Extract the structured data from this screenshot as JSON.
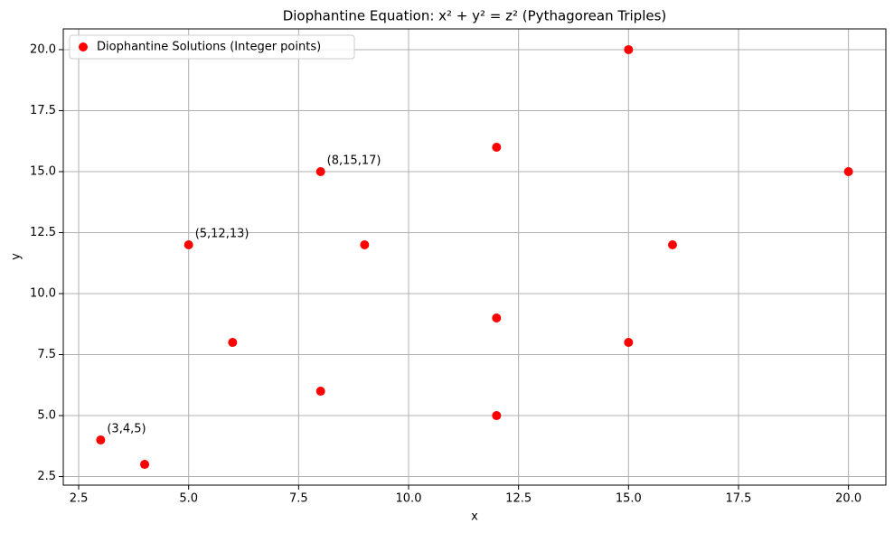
{
  "chart_data": {
    "type": "scatter",
    "title": "Diophantine Equation: x² + y² = z² (Pythagorean Triples)",
    "xlabel": "x",
    "ylabel": "y",
    "x": [
      3,
      4,
      5,
      12,
      6,
      8,
      8,
      15,
      9,
      12,
      12,
      16,
      15,
      20
    ],
    "series": [
      {
        "name": "Diophantine Solutions (Integer points)",
        "color": "#ff0000",
        "values": [
          4,
          3,
          12,
          5,
          8,
          6,
          15,
          8,
          12,
          9,
          16,
          12,
          20,
          15
        ]
      }
    ],
    "xlim": [
      2.15,
      20.85
    ],
    "ylim": [
      2.15,
      20.85
    ],
    "xticks": [
      2.5,
      {
        "value": 5,
        "label": "5.0"
      },
      7.5,
      {
        "value": 10,
        "label": "10.0"
      },
      12.5,
      {
        "value": 15,
        "label": "15.0"
      },
      17.5,
      {
        "value": 20,
        "label": "20.0"
      }
    ],
    "yticks": [
      2.5,
      {
        "value": 5,
        "label": "5.0"
      },
      7.5,
      {
        "value": 10,
        "label": "10.0"
      },
      12.5,
      {
        "value": 15,
        "label": "15.0"
      },
      17.5,
      {
        "value": 20,
        "label": "20.0"
      }
    ],
    "annotations": [
      {
        "text": "(3,4,5)",
        "x": 3,
        "y": 4
      },
      {
        "text": "(5,12,13)",
        "x": 5,
        "y": 12
      },
      {
        "text": "(8,15,17)",
        "x": 8,
        "y": 15
      }
    ],
    "grid": true,
    "legend": "upper left"
  }
}
